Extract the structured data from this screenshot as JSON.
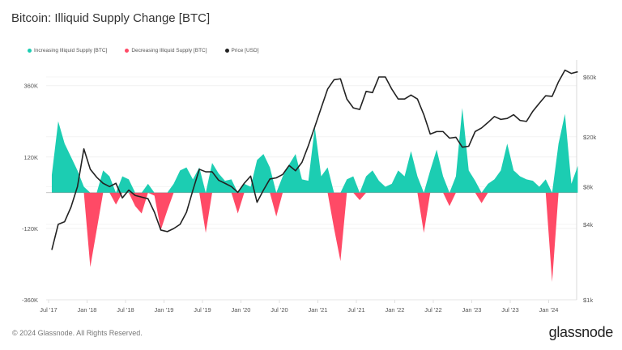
{
  "title": "Bitcoin: Illiquid Supply Change [BTC]",
  "footer": "© 2024 Glassnode. All Rights Reserved.",
  "logo": "glassnode",
  "colors": {
    "increase": "#1ccdb2",
    "decrease": "#ff4a66",
    "price": "#222222"
  },
  "chart_data": {
    "type": "area",
    "title": "Bitcoin: Illiquid Supply Change [BTC]",
    "legend": [
      "Increasing Illiquid Supply [BTC]",
      "Decreasing Illiquid Supply [BTC]",
      "Price [USD]"
    ],
    "legend_position": "top-left",
    "grid": true,
    "x": [
      "2017-07",
      "2017-08",
      "2017-09",
      "2017-10",
      "2017-11",
      "2017-12",
      "2018-01",
      "2018-02",
      "2018-03",
      "2018-04",
      "2018-05",
      "2018-06",
      "2018-07",
      "2018-08",
      "2018-09",
      "2018-10",
      "2018-11",
      "2018-12",
      "2019-01",
      "2019-02",
      "2019-03",
      "2019-04",
      "2019-05",
      "2019-06",
      "2019-07",
      "2019-08",
      "2019-09",
      "2019-10",
      "2019-11",
      "2019-12",
      "2020-01",
      "2020-02",
      "2020-03",
      "2020-04",
      "2020-05",
      "2020-06",
      "2020-07",
      "2020-08",
      "2020-09",
      "2020-10",
      "2020-11",
      "2020-12",
      "2021-01",
      "2021-02",
      "2021-03",
      "2021-04",
      "2021-05",
      "2021-06",
      "2021-07",
      "2021-08",
      "2021-09",
      "2021-10",
      "2021-11",
      "2021-12",
      "2022-01",
      "2022-02",
      "2022-03",
      "2022-04",
      "2022-05",
      "2022-06",
      "2022-07",
      "2022-08",
      "2022-09",
      "2022-10",
      "2022-11",
      "2022-12",
      "2023-01",
      "2023-02",
      "2023-03",
      "2023-04",
      "2023-05",
      "2023-06",
      "2023-07",
      "2023-08",
      "2023-09",
      "2023-10",
      "2023-11",
      "2023-12",
      "2024-01",
      "2024-02",
      "2024-03",
      "2024-04",
      "2024-05"
    ],
    "x_ticks": [
      "Jul '17",
      "Jan '18",
      "Jul '18",
      "Jan '19",
      "Jul '19",
      "Jan '20",
      "Jul '20",
      "Jan '21",
      "Jul '21",
      "Jan '22",
      "Jul '22",
      "Jan '23",
      "Jul '23",
      "Jan '24"
    ],
    "y_left": {
      "ticks": [
        "360K",
        "120K",
        "-120K",
        "-360K"
      ],
      "tick_values": [
        360000,
        120000,
        -120000,
        -360000
      ],
      "range": [
        -360000,
        430000
      ]
    },
    "y_right": {
      "scale": "log",
      "ticks": [
        "$60k",
        "$20k",
        "$8k",
        "$4k",
        "$1k"
      ],
      "tick_values": [
        60000,
        20000,
        8000,
        4000,
        1000
      ],
      "range": [
        1000,
        75000
      ]
    },
    "series": [
      {
        "name": "Illiquid Supply Change [BTC]",
        "axis": "left",
        "values": [
          60000,
          240000,
          165000,
          120000,
          75000,
          20000,
          -250000,
          -125000,
          75000,
          55000,
          -40000,
          55000,
          45000,
          -45000,
          -70000,
          30000,
          -10000,
          -125000,
          -60000,
          30000,
          75000,
          85000,
          45000,
          85000,
          -135000,
          100000,
          65000,
          40000,
          45000,
          -70000,
          30000,
          20000,
          110000,
          130000,
          85000,
          -80000,
          55000,
          95000,
          130000,
          45000,
          40000,
          220000,
          55000,
          85000,
          -120000,
          -230000,
          45000,
          55000,
          -25000,
          55000,
          75000,
          40000,
          20000,
          30000,
          75000,
          55000,
          140000,
          55000,
          -135000,
          75000,
          145000,
          55000,
          -45000,
          55000,
          285000,
          75000,
          40000,
          -35000,
          30000,
          45000,
          75000,
          165000,
          75000,
          55000,
          45000,
          40000,
          20000,
          45000,
          -300000,
          165000,
          265000,
          30000,
          90000
        ]
      },
      {
        "name": "Price [USD]",
        "axis": "right",
        "values": [
          2500,
          4000,
          4200,
          5500,
          8000,
          16000,
          11000,
          9500,
          8500,
          8000,
          8500,
          6500,
          7500,
          6800,
          6600,
          6400,
          5000,
          3600,
          3500,
          3700,
          4000,
          5000,
          7500,
          11000,
          10500,
          10500,
          9000,
          8500,
          8000,
          7200,
          8500,
          9700,
          6000,
          7500,
          9200,
          9400,
          10000,
          11800,
          10700,
          12500,
          17000,
          24000,
          34000,
          48000,
          57000,
          58000,
          40000,
          34000,
          33000,
          46000,
          45000,
          60000,
          60000,
          48000,
          40000,
          40000,
          43000,
          40000,
          30000,
          21000,
          22000,
          22000,
          19500,
          19800,
          16500,
          16800,
          22000,
          23500,
          26000,
          29000,
          27500,
          28000,
          30000,
          27000,
          26500,
          32000,
          37000,
          42500,
          42000,
          55000,
          68000,
          64000,
          66000
        ]
      }
    ]
  }
}
